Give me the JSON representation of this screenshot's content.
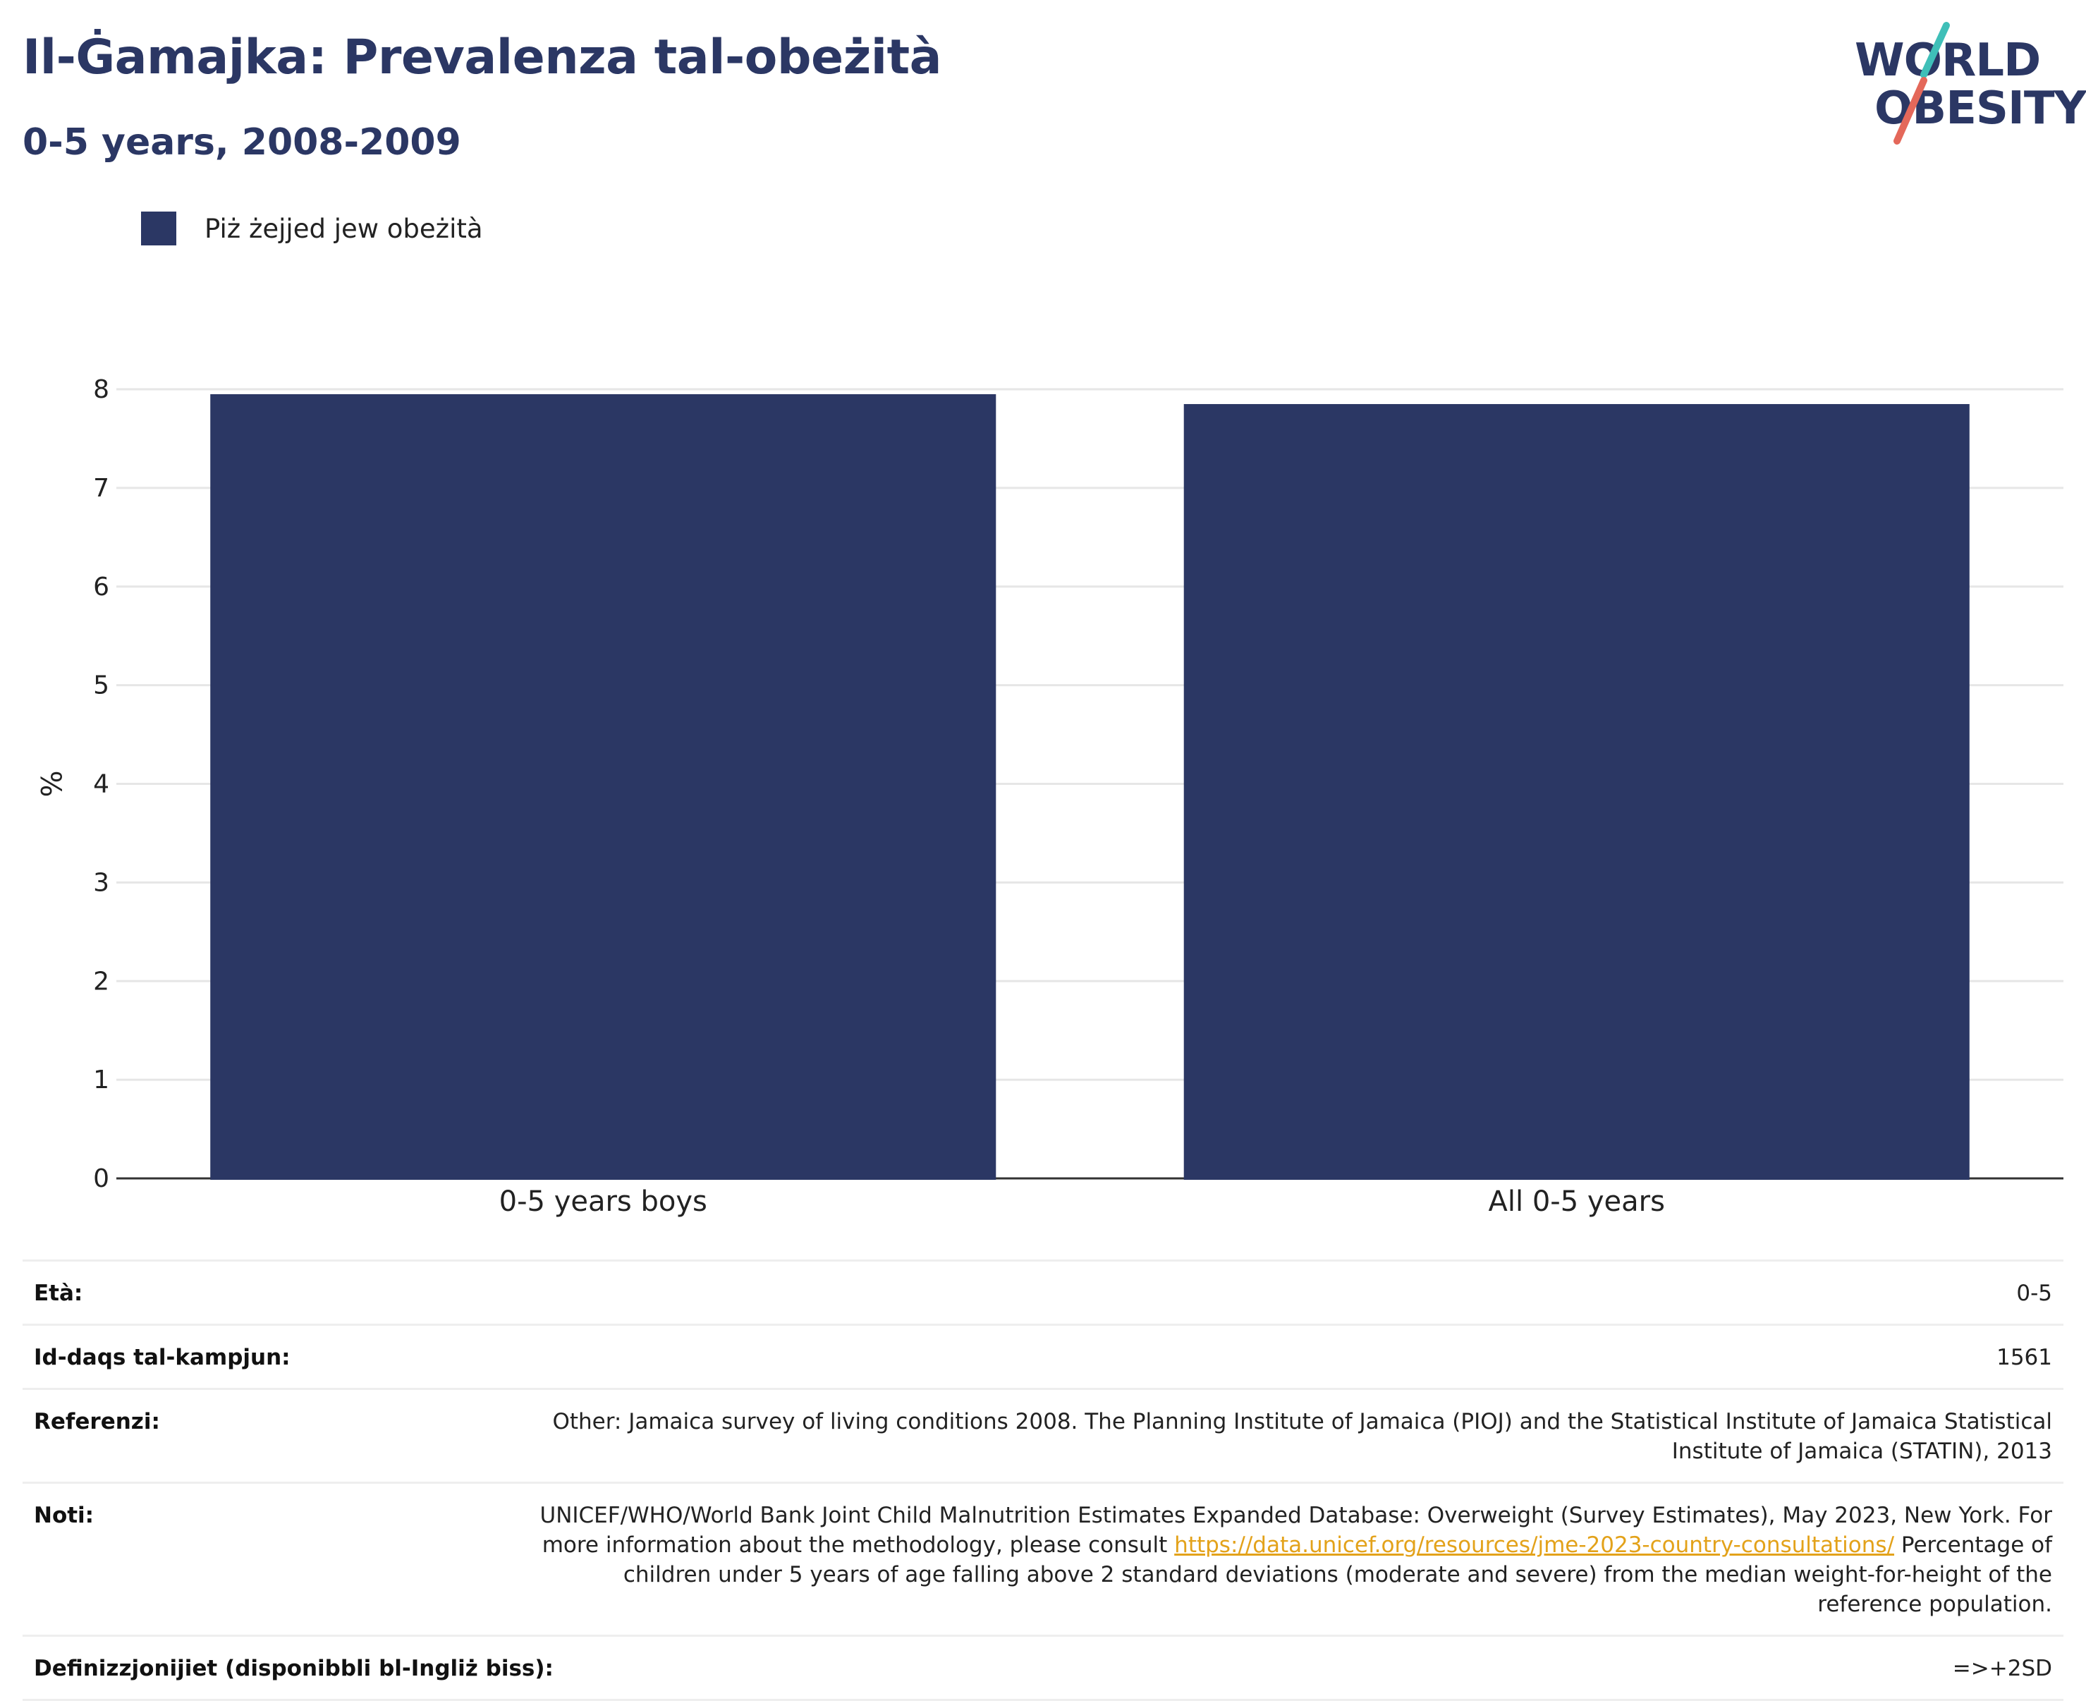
{
  "header": {
    "title": "Il-Ġamajka: Prevalenza tal-obeżità",
    "subtitle": "0-5 years, 2008-2009"
  },
  "logo": {
    "line1": "WORLD",
    "line2": "OBESITY",
    "colors": {
      "text": "#2b3764",
      "slash_teal": "#3fbfb8",
      "slash_red": "#e4685a"
    }
  },
  "legend": {
    "items": [
      {
        "label": "Piż żejjed jew obeżità",
        "color": "#2b3764"
      }
    ]
  },
  "chart_data": {
    "type": "bar",
    "categories": [
      "0-5 years boys",
      "All 0-5 years"
    ],
    "series": [
      {
        "name": "Piż żejjed jew obeżità",
        "values": [
          7.95,
          7.85
        ],
        "color": "#2b3764"
      }
    ],
    "ylabel": "%",
    "xlabel": "",
    "ylim": [
      0,
      8
    ],
    "yticks": [
      0,
      1,
      2,
      3,
      4,
      5,
      6,
      7,
      8
    ],
    "grid": true,
    "legend_position": "top-left"
  },
  "info": {
    "rows": [
      {
        "key": "Età:",
        "value": "0-5"
      },
      {
        "key": "Id-daqs tal-kampjun:",
        "value": "1561"
      },
      {
        "key": "Referenzi:",
        "value": "Other: Jamaica survey of living conditions 2008. The Planning Institute of Jamaica (PIOJ) and the Statistical Institute of Jamaica Statistical Institute of Jamaica (STATIN), 2013"
      }
    ],
    "notes": {
      "key": "Noti:",
      "text_before": "UNICEF/WHO/World Bank Joint Child Malnutrition Estimates Expanded Database: Overweight (Survey Estimates), May 2023, New York. For more information about the methodology, please consult ",
      "link": "https://data.unicef.org/resources/jme-2023-country-consultations/",
      "text_after": " Percentage of children under 5 years of age falling above 2 standard deviations (moderate and severe) from the median weight-for-height of the reference population."
    },
    "definitions": {
      "key": "Definizzjonijiet (disponibbli bl-Ingliż biss):",
      "value": "=>+2SD"
    }
  }
}
